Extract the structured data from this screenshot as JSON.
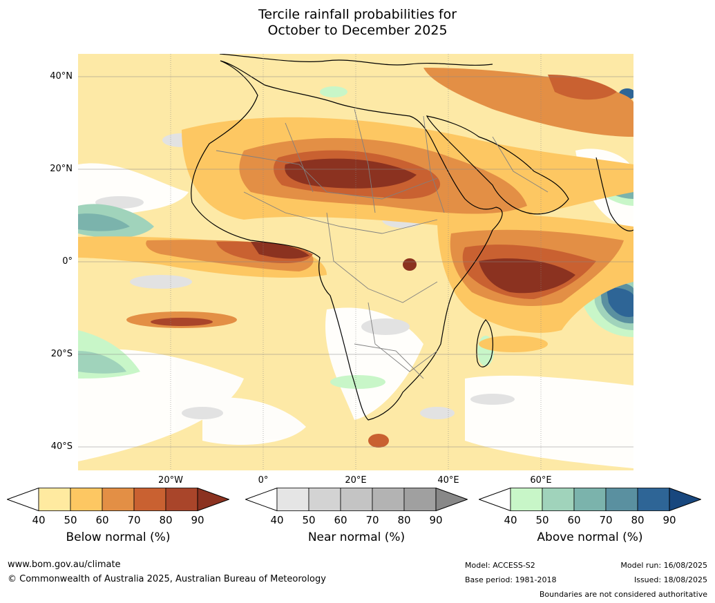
{
  "title": {
    "line1": "Tercile rainfall probabilities for",
    "line2": "October to December 2025"
  },
  "map": {
    "latitude_labels": [
      "40°N",
      "20°N",
      "0°",
      "20°S",
      "40°S"
    ],
    "longitude_labels": [
      "20°W",
      "0°",
      "20°E",
      "40°E",
      "60°E"
    ],
    "region": "Africa, Arabian Peninsula and western Indian Ocean"
  },
  "colorbars": [
    {
      "id": "below",
      "label": "Below normal (%)",
      "ticks": [
        "40",
        "50",
        "60",
        "70",
        "80",
        "90"
      ],
      "colors": [
        "#ffffff",
        "#ffeaa0",
        "#fdc762",
        "#e38f45",
        "#c96131",
        "#a9452a",
        "#8b3220"
      ]
    },
    {
      "id": "near",
      "label": "Near normal (%)",
      "ticks": [
        "40",
        "50",
        "60",
        "70",
        "80",
        "90"
      ],
      "colors": [
        "#ffffff",
        "#e5e5e5",
        "#d3d3d3",
        "#c4c4c4",
        "#b3b3b3",
        "#a0a0a0",
        "#888888"
      ]
    },
    {
      "id": "above",
      "label": "Above normal (%)",
      "ticks": [
        "40",
        "50",
        "60",
        "70",
        "80",
        "90"
      ],
      "colors": [
        "#ffffff",
        "#c8f6c8",
        "#a0d3bb",
        "#7bb3ac",
        "#5a90a0",
        "#2e6596",
        "#18477e"
      ]
    }
  ],
  "footer": {
    "website": "www.bom.gov.au/climate",
    "copyright": "© Commonwealth of Australia 2025, Australian Bureau of Meteorology",
    "model": "Model: ACCESS-S2",
    "base_period": "Base period: 1981-2018",
    "model_run": "Model run: 16/08/2025",
    "issued": "Issued: 18/08/2025",
    "disclaimer": "Boundaries are not considered authoritative"
  }
}
